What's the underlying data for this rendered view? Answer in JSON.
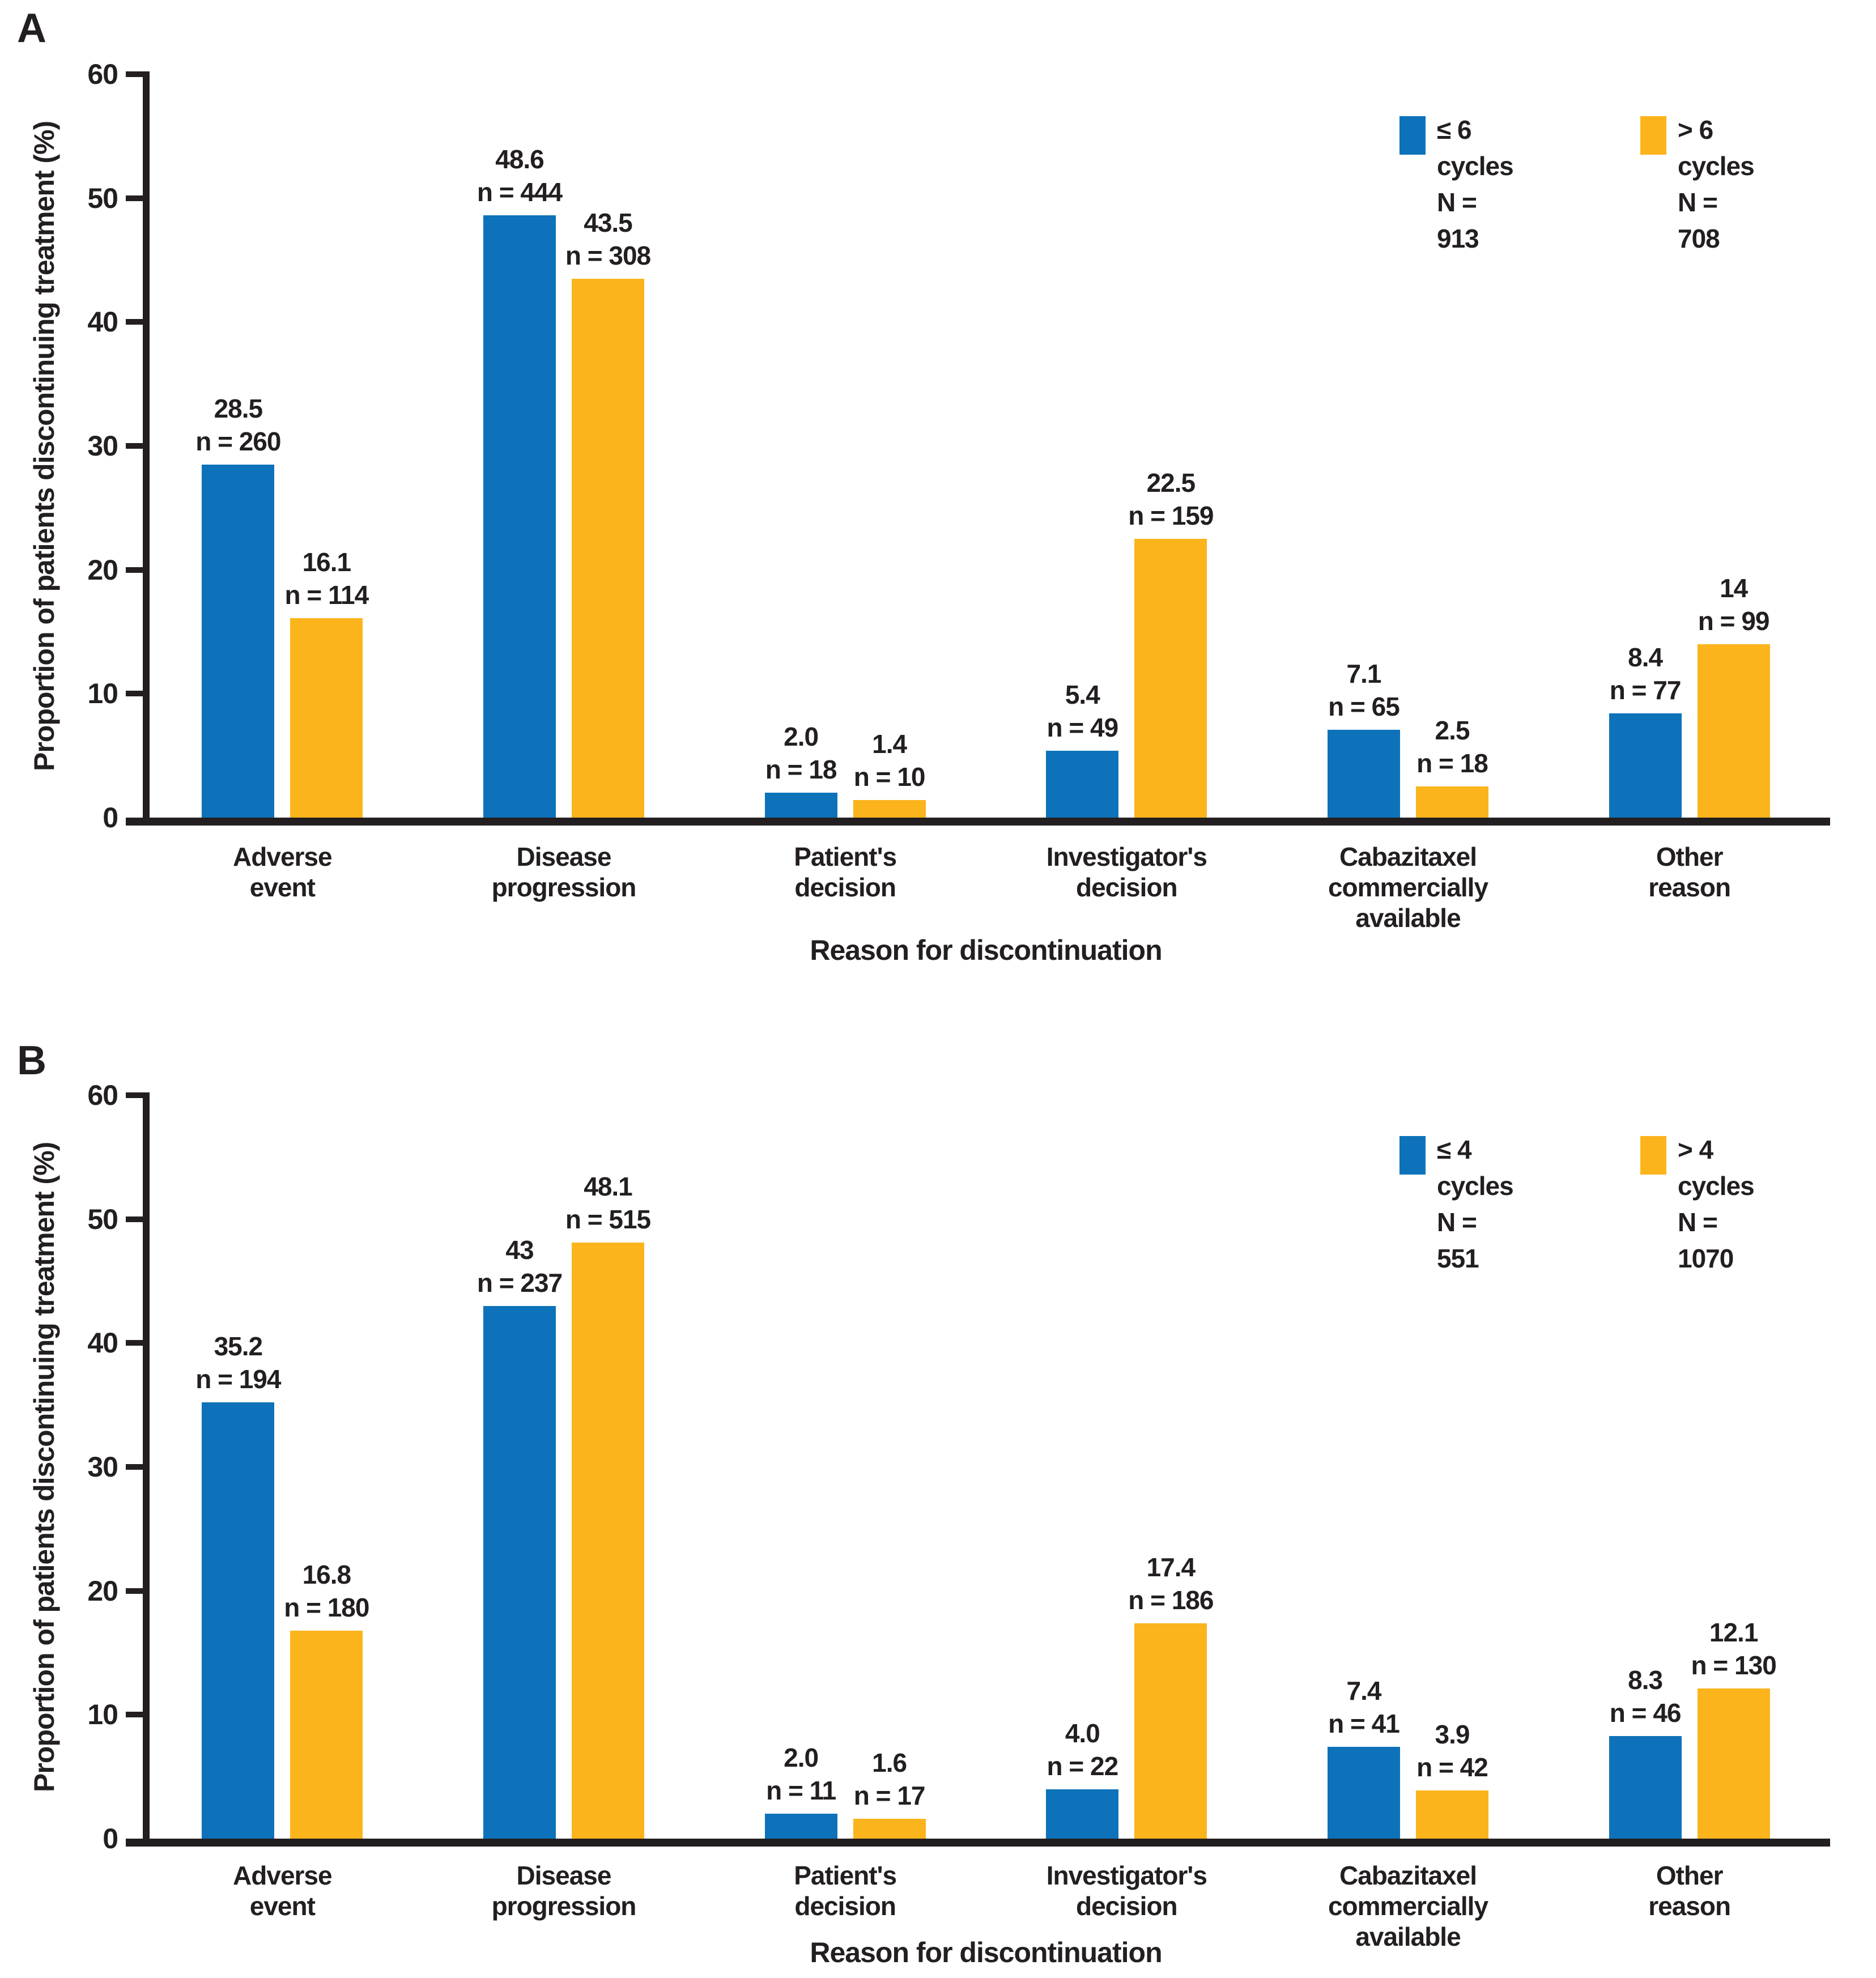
{
  "colors": {
    "series_blue": "#0D72B9",
    "series_yellow": "#FBB41C",
    "text": "#231F20",
    "axis": "#231F20",
    "background": "#FFFFFF"
  },
  "chart_data": [
    {
      "type": "bar",
      "panel_label": "A",
      "title": "",
      "xlabel": "Reason for discontinuation",
      "ylabel": "Proportion of patients discontinuing treatment (%)",
      "ylim": [
        0,
        60
      ],
      "yticks": [
        0,
        10,
        20,
        30,
        40,
        50,
        60
      ],
      "ytick_labels": [
        "0",
        "10",
        "20",
        "30",
        "40",
        "50",
        "60"
      ],
      "grid": false,
      "legend_position": "top-right",
      "categories": [
        "Adverse event",
        "Disease progression",
        "Patient's decision",
        "Investigator's decision",
        "Cabazitaxel commercially available",
        "Other reason"
      ],
      "category_label_lines": [
        [
          "Adverse",
          "event"
        ],
        [
          "Disease",
          "progression"
        ],
        [
          "Patient's",
          "decision"
        ],
        [
          "Investigator's",
          "decision"
        ],
        [
          "Cabazitaxel",
          "commercially",
          "available"
        ],
        [
          "Other",
          "reason"
        ]
      ],
      "series": [
        {
          "name": "≤ 6 cycles",
          "n_total_label": "N = 913",
          "color_key": "series_blue",
          "values": [
            28.5,
            48.6,
            2.0,
            5.4,
            7.1,
            8.4
          ],
          "value_labels": [
            "28.5",
            "48.6",
            "2.0",
            "5.4",
            "7.1",
            "8.4"
          ],
          "n_labels": [
            "n = 260",
            "n = 444",
            "n = 18",
            "n = 49",
            "n = 65",
            "n = 77"
          ]
        },
        {
          "name": "> 6 cycles",
          "n_total_label": "N = 708",
          "color_key": "series_yellow",
          "values": [
            16.1,
            43.5,
            1.4,
            22.5,
            2.5,
            14
          ],
          "value_labels": [
            "16.1",
            "43.5",
            "1.4",
            "22.5",
            "2.5",
            "14"
          ],
          "n_labels": [
            "n = 114",
            "n = 308",
            "n = 10",
            "n = 159",
            "n = 18",
            "n = 99"
          ]
        }
      ]
    },
    {
      "type": "bar",
      "panel_label": "B",
      "title": "",
      "xlabel": "Reason for discontinuation",
      "ylabel": "Proportion of patients discontinuing treatment (%)",
      "ylim": [
        0,
        60
      ],
      "yticks": [
        0,
        10,
        20,
        30,
        40,
        50,
        60
      ],
      "ytick_labels": [
        "0",
        "10",
        "20",
        "30",
        "40",
        "50",
        "60"
      ],
      "grid": false,
      "legend_position": "top-right",
      "categories": [
        "Adverse event",
        "Disease progression",
        "Patient's decision",
        "Investigator's decision",
        "Cabazitaxel commercially available",
        "Other reason"
      ],
      "category_label_lines": [
        [
          "Adverse",
          "event"
        ],
        [
          "Disease",
          "progression"
        ],
        [
          "Patient's",
          "decision"
        ],
        [
          "Investigator's",
          "decision"
        ],
        [
          "Cabazitaxel",
          "commercially",
          "available"
        ],
        [
          "Other",
          "reason"
        ]
      ],
      "series": [
        {
          "name": "≤ 4 cycles",
          "n_total_label": "N = 551",
          "color_key": "series_blue",
          "values": [
            35.2,
            43,
            2.0,
            4.0,
            7.4,
            8.3
          ],
          "value_labels": [
            "35.2",
            "43",
            "2.0",
            "4.0",
            "7.4",
            "8.3"
          ],
          "n_labels": [
            "n = 194",
            "n = 237",
            "n = 11",
            "n = 22",
            "n = 41",
            "n = 46"
          ]
        },
        {
          "name": "> 4 cycles",
          "n_total_label": "N = 1070",
          "color_key": "series_yellow",
          "values": [
            16.8,
            48.1,
            1.6,
            17.4,
            3.9,
            12.1
          ],
          "value_labels": [
            "16.8",
            "48.1",
            "1.6",
            "17.4",
            "3.9",
            "12.1"
          ],
          "n_labels": [
            "n = 180",
            "n = 515",
            "n = 17",
            "n = 186",
            "n = 42",
            "n = 130"
          ]
        }
      ]
    }
  ]
}
